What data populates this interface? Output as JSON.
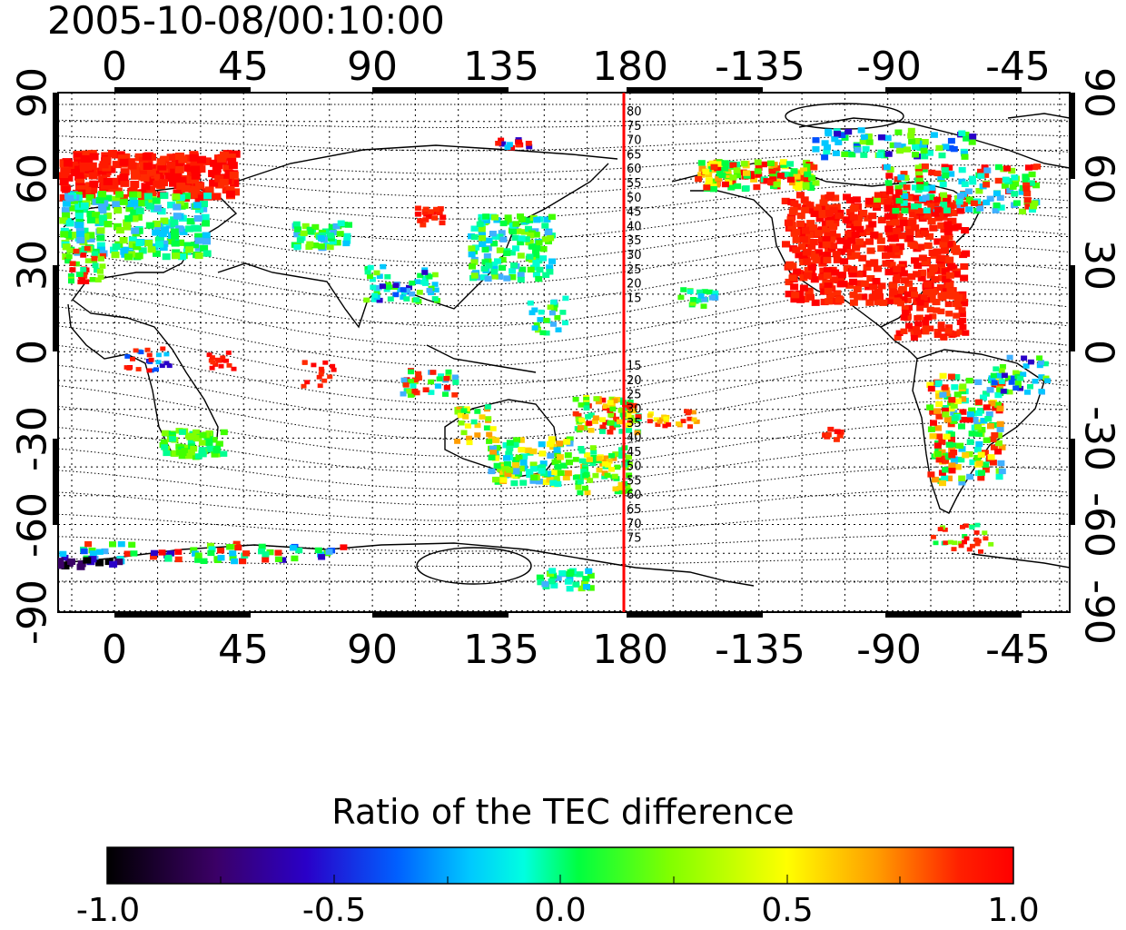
{
  "title": "2005-10-08/00:10:00",
  "colorbar": {
    "label": "Ratio of the TEC difference",
    "ticks": [
      "-1.0",
      "-0.5",
      "0.0",
      "0.5",
      "1.0"
    ],
    "min": -1.0,
    "max": 1.0
  },
  "map": {
    "projection": "equirectangular",
    "lon_center": 180,
    "lat_range": [
      -90,
      90
    ],
    "lon_tick_labels": [
      "0",
      "45",
      "90",
      "135",
      "180",
      "-135",
      "-90",
      "-45"
    ],
    "lat_tick_labels_left": [
      "90",
      "60",
      "30",
      "0",
      "-30",
      "-60",
      "-90"
    ],
    "lat_tick_labels_right": [
      "90",
      "60",
      "30",
      "0",
      "-30",
      "-60",
      "-90"
    ],
    "grid": true,
    "marker_line": {
      "longitude": 180,
      "color": "#ff0000"
    },
    "magnetic_latitude_labels_north": [
      "80",
      "75",
      "70",
      "65",
      "60",
      "55",
      "50",
      "45",
      "40",
      "35",
      "30",
      "25",
      "20",
      "15"
    ],
    "magnetic_latitude_labels_south": [
      "15",
      "20",
      "25",
      "30",
      "35",
      "40",
      "45",
      "50",
      "55",
      "60",
      "65",
      "70",
      "75"
    ]
  },
  "colors": {
    "colormap": [
      "#000000",
      "#3b0066",
      "#2a00c8",
      "#0050ff",
      "#00c8ff",
      "#00ffd0",
      "#00ff40",
      "#9aff00",
      "#ffff00",
      "#ff9c00",
      "#ff2000",
      "#ff0000"
    ]
  }
}
